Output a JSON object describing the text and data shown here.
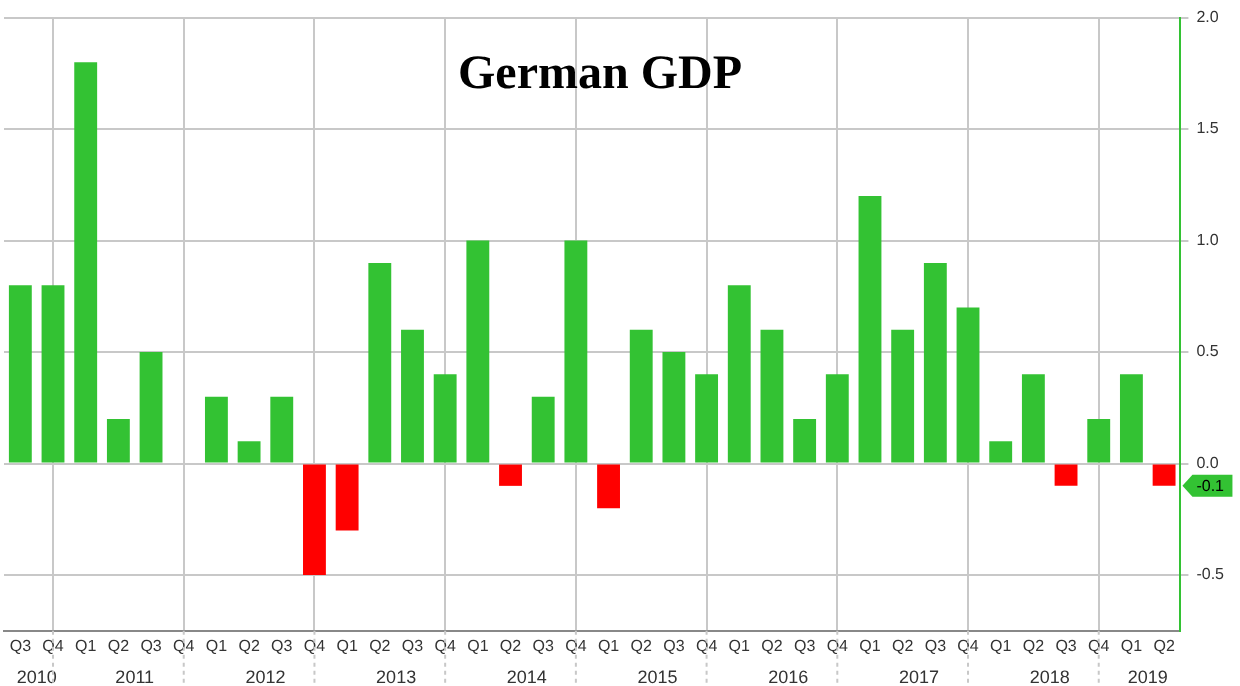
{
  "chart_data": {
    "type": "bar",
    "title": "German GDP",
    "categories": [
      "Q3",
      "Q4",
      "Q1",
      "Q2",
      "Q3",
      "Q4",
      "Q1",
      "Q2",
      "Q3",
      "Q4",
      "Q1",
      "Q2",
      "Q3",
      "Q4",
      "Q1",
      "Q2",
      "Q3",
      "Q4",
      "Q1",
      "Q2",
      "Q3",
      "Q4",
      "Q1",
      "Q2",
      "Q3",
      "Q4",
      "Q1",
      "Q2",
      "Q3",
      "Q4",
      "Q1",
      "Q2",
      "Q3",
      "Q4",
      "Q1",
      "Q2"
    ],
    "values": [
      0.8,
      0.8,
      1.8,
      0.2,
      0.5,
      0.0,
      0.3,
      0.1,
      0.3,
      -0.5,
      -0.3,
      0.9,
      0.6,
      0.4,
      1.0,
      -0.1,
      0.3,
      1.0,
      -0.2,
      0.6,
      0.5,
      0.4,
      0.8,
      0.6,
      0.2,
      0.4,
      1.2,
      0.6,
      0.9,
      0.7,
      0.1,
      0.4,
      -0.1,
      0.2,
      0.4,
      -0.1
    ],
    "colors": [
      "#33c233",
      "#33c233",
      "#33c233",
      "#33c233",
      "#33c233",
      "#33c233",
      "#33c233",
      "#33c233",
      "#33c233",
      "#ff0000",
      "#ff0000",
      "#33c233",
      "#33c233",
      "#33c233",
      "#33c233",
      "#ff0000",
      "#33c233",
      "#33c233",
      "#ff0000",
      "#33c233",
      "#33c233",
      "#33c233",
      "#33c233",
      "#33c233",
      "#33c233",
      "#33c233",
      "#33c233",
      "#33c233",
      "#33c233",
      "#33c233",
      "#33c233",
      "#33c233",
      "#ff0000",
      "#33c233",
      "#33c233",
      "#ff0000"
    ],
    "ylim": [
      -0.75,
      2.0
    ],
    "yticks": [
      -0.5,
      {
        "value": 0,
        "label": "0.0"
      },
      0.5,
      {
        "value": 1,
        "label": "1.0"
      },
      1.5,
      {
        "value": 2,
        "label": "2.0"
      }
    ],
    "annotations": [
      "2010",
      "2011",
      "2012",
      "2013",
      "2014",
      "2015",
      "2016",
      "2017",
      "2018",
      "2019",
      {
        "text": "-0.1",
        "y": -0.1
      }
    ],
    "grid": true
  }
}
